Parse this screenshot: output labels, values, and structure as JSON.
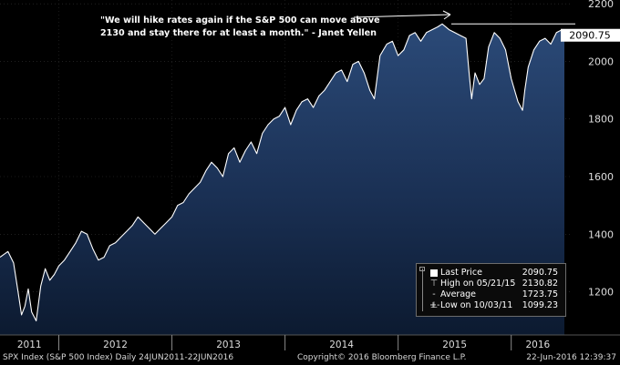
{
  "chart_data": {
    "type": "area",
    "title": "SPX Index (S&P 500 Index)",
    "frequency": "Daily",
    "date_range": "24JUN2011-22JUN2016",
    "x_labels": [
      "2011",
      "2012",
      "2013",
      "2014",
      "2015",
      "2016"
    ],
    "y_ticks": [
      1200,
      1400,
      1600,
      1800,
      2000,
      2200
    ],
    "ylim": [
      1050,
      2210
    ],
    "last_price_label": "2090.75",
    "reference_level": 2130,
    "annotation": {
      "line1": "\"We will hike rates again if the S&P 500 can move above",
      "line2": "2130 and stay there for at least a month.\" - Janet Yellen"
    },
    "series": [
      {
        "name": "S&P 500 Index",
        "x": [
          2011.48,
          2011.55,
          2011.6,
          2011.64,
          2011.67,
          2011.7,
          2011.73,
          2011.76,
          2011.8,
          2011.84,
          2011.88,
          2011.92,
          2011.96,
          2012.0,
          2012.05,
          2012.1,
          2012.15,
          2012.2,
          2012.25,
          2012.3,
          2012.35,
          2012.4,
          2012.45,
          2012.5,
          2012.55,
          2012.6,
          2012.65,
          2012.7,
          2012.75,
          2012.8,
          2012.85,
          2012.9,
          2012.95,
          2013.0,
          2013.05,
          2013.1,
          2013.15,
          2013.2,
          2013.25,
          2013.3,
          2013.35,
          2013.4,
          2013.45,
          2013.5,
          2013.55,
          2013.6,
          2013.65,
          2013.7,
          2013.75,
          2013.8,
          2013.85,
          2013.9,
          2013.95,
          2014.0,
          2014.05,
          2014.1,
          2014.15,
          2014.2,
          2014.25,
          2014.3,
          2014.35,
          2014.4,
          2014.45,
          2014.5,
          2014.55,
          2014.6,
          2014.65,
          2014.7,
          2014.75,
          2014.79,
          2014.84,
          2014.9,
          2014.95,
          2015.0,
          2015.05,
          2015.1,
          2015.15,
          2015.2,
          2015.25,
          2015.3,
          2015.35,
          2015.39,
          2015.45,
          2015.5,
          2015.55,
          2015.6,
          2015.63,
          2015.65,
          2015.68,
          2015.72,
          2015.76,
          2015.8,
          2015.85,
          2015.9,
          2015.95,
          2016.0,
          2016.03,
          2016.06,
          2016.1,
          2016.12,
          2016.15,
          2016.2,
          2016.25,
          2016.3,
          2016.35,
          2016.4,
          2016.45,
          2016.47
        ],
        "values": [
          1320,
          1340,
          1300,
          1200,
          1120,
          1150,
          1210,
          1130,
          1099,
          1220,
          1280,
          1240,
          1260,
          1290,
          1310,
          1340,
          1370,
          1410,
          1400,
          1350,
          1310,
          1320,
          1360,
          1370,
          1390,
          1410,
          1430,
          1460,
          1440,
          1420,
          1400,
          1420,
          1440,
          1460,
          1500,
          1510,
          1540,
          1560,
          1580,
          1620,
          1650,
          1630,
          1600,
          1680,
          1700,
          1650,
          1690,
          1720,
          1680,
          1750,
          1780,
          1800,
          1810,
          1840,
          1780,
          1830,
          1860,
          1870,
          1840,
          1880,
          1900,
          1930,
          1960,
          1970,
          1930,
          1990,
          2000,
          1960,
          1900,
          1870,
          2020,
          2060,
          2070,
          2020,
          2040,
          2090,
          2100,
          2070,
          2100,
          2110,
          2120,
          2130,
          2110,
          2100,
          2090,
          2080,
          1950,
          1870,
          1960,
          1920,
          1940,
          2050,
          2100,
          2080,
          2040,
          1940,
          1900,
          1860,
          1830,
          1900,
          1980,
          2040,
          2070,
          2080,
          2060,
          2100,
          2110,
          2090.75
        ]
      }
    ],
    "legend": [
      {
        "label": "Last Price",
        "value": "2090.75"
      },
      {
        "label": "High on 05/21/15",
        "value": "2130.82"
      },
      {
        "label": "Average",
        "value": "1723.75"
      },
      {
        "label": "Low on 10/03/11",
        "value": "1099.23"
      }
    ],
    "footer": {
      "left": "SPX Index (S&P 500 Index)  Daily 24JUN2011-22JUN2016",
      "center": "Copyright© 2016 Bloomberg Finance L.P.",
      "right": "22-Jun-2016 12:39:37"
    }
  }
}
